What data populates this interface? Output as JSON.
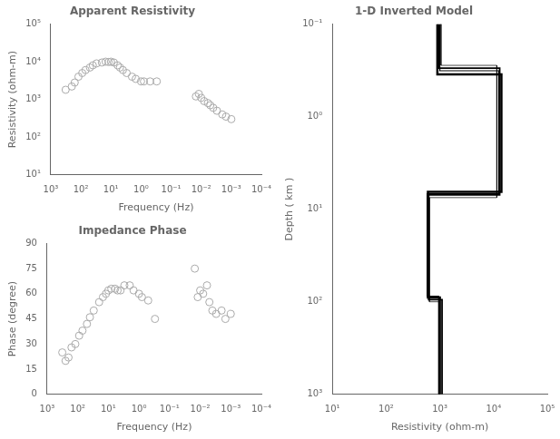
{
  "chart_data": [
    {
      "type": "scatter",
      "title": "Apparent Resistivity",
      "x_label": "Frequency (Hz)",
      "y_label": "Resistivity (ohm-m)",
      "x": [
        320,
        200,
        160,
        120,
        90,
        70,
        50,
        40,
        30,
        20,
        15,
        12,
        10,
        8,
        6,
        5,
        4,
        3,
        2,
        1.5,
        1.0,
        0.8,
        0.5,
        0.3,
        0.015,
        0.012,
        0.01,
        0.008,
        0.006,
        0.005,
        0.004,
        0.003,
        0.002,
        0.0015,
        0.001
      ],
      "values": [
        1800,
        2200,
        2800,
        4000,
        5000,
        6000,
        7000,
        8000,
        9000,
        9500,
        10000,
        9800,
        10000,
        9500,
        8000,
        7000,
        6000,
        5000,
        4000,
        3500,
        3000,
        3000,
        3000,
        3000,
        1200,
        1400,
        1100,
        900,
        800,
        700,
        600,
        500,
        400,
        350,
        300
      ],
      "color": "#aaaaaa",
      "marker": "circle",
      "log": true,
      "grid": false,
      "xlim": [
        1000,
        0.0001
      ],
      "ylim": [
        10,
        100000
      ],
      "xticks": [
        {
          "value": 0.0001,
          "label": "10⁻⁴"
        },
        {
          "value": 0.001,
          "label": "10⁻³"
        },
        {
          "value": 0.01,
          "label": "10⁻²"
        },
        {
          "value": 0.1,
          "label": "10⁻¹"
        },
        {
          "value": 1,
          "label": "10⁰"
        },
        {
          "value": 10,
          "label": "10¹"
        },
        {
          "value": 100,
          "label": "10²"
        },
        {
          "value": 1000,
          "label": "10³"
        }
      ],
      "yticks": [
        {
          "value": 10,
          "label": "10¹"
        },
        {
          "value": 100,
          "label": "10²"
        },
        {
          "value": 1000,
          "label": "10³"
        },
        {
          "value": 10000,
          "label": "10⁴"
        },
        {
          "value": 100000,
          "label": "10⁵"
        }
      ]
    },
    {
      "type": "scatter",
      "title": "Impedance Phase",
      "x_label": "Frequency (Hz)",
      "y_label": "Phase (degree)",
      "x": [
        320,
        250,
        200,
        160,
        120,
        90,
        70,
        50,
        40,
        30,
        20,
        15,
        12,
        10,
        8,
        6,
        5,
        4,
        3,
        2,
        1.5,
        1.0,
        0.8,
        0.5,
        0.3,
        0.015,
        0.012,
        0.01,
        0.008,
        0.006,
        0.005,
        0.004,
        0.003,
        0.002,
        0.0015,
        0.001
      ],
      "values": [
        25,
        20,
        22,
        28,
        30,
        35,
        38,
        42,
        46,
        50,
        55,
        58,
        60,
        62,
        63,
        63,
        62,
        62,
        65,
        65,
        62,
        60,
        58,
        56,
        45,
        75,
        58,
        62,
        60,
        65,
        55,
        50,
        48,
        50,
        45,
        48
      ],
      "color": "#aaaaaa",
      "marker": "circle",
      "log": "x",
      "grid": false,
      "xlim": [
        1000,
        0.0001
      ],
      "ylim": [
        0,
        90
      ],
      "xticks": [
        {
          "value": 0.0001,
          "label": "10⁻⁴"
        },
        {
          "value": 0.001,
          "label": "10⁻³"
        },
        {
          "value": 0.01,
          "label": "10⁻²"
        },
        {
          "value": 0.1,
          "label": "10⁻¹"
        },
        {
          "value": 1,
          "label": "10⁰"
        },
        {
          "value": 10,
          "label": "10¹"
        },
        {
          "value": 100,
          "label": "10²"
        },
        {
          "value": 1000,
          "label": "10³"
        }
      ],
      "yticks": [
        0,
        15,
        30,
        45,
        60,
        75,
        90
      ]
    },
    {
      "type": "line",
      "title": "1-D Inverted Model",
      "x_label": "Resistivity (ohm-m)",
      "y_label": "Depth ( km )",
      "log": true,
      "grid": false,
      "xlim": [
        10,
        100000
      ],
      "ylim": [
        1000,
        0.1
      ],
      "xticks": [
        {
          "value": 10,
          "label": "10¹"
        },
        {
          "value": 100,
          "label": "10²"
        },
        {
          "value": 1000,
          "label": "10³"
        },
        {
          "value": 10000,
          "label": "10⁴"
        },
        {
          "value": 100000,
          "label": "10⁵"
        }
      ],
      "yticks": [
        {
          "value": 0.1,
          "label": "10⁻¹"
        },
        {
          "value": 1,
          "label": "10⁰"
        },
        {
          "value": 10,
          "label": "10¹"
        },
        {
          "value": 100,
          "label": "10²"
        },
        {
          "value": 1000,
          "label": "10³"
        }
      ],
      "series": [
        {
          "color": "#000000",
          "x": [
            900,
            900,
            14000,
            14000,
            14000,
            600,
            600,
            600,
            1000,
            1000,
            1000
          ],
          "values": [
            0.1,
            0.35,
            0.35,
            0.35,
            6.5,
            6.5,
            6.5,
            90,
            90,
            90,
            1000
          ]
        },
        {
          "color": "#000000",
          "x": [
            950,
            950,
            13000,
            13000,
            13000,
            620,
            620,
            620,
            1100,
            1100,
            1100
          ],
          "values": [
            0.1,
            0.3,
            0.3,
            0.3,
            7.0,
            7.0,
            7.0,
            95,
            95,
            95,
            1000
          ]
        },
        {
          "color": "#000000",
          "x": [
            1000,
            1000,
            12500,
            12500,
            12500,
            580,
            580,
            580,
            950,
            950,
            950
          ],
          "values": [
            0.1,
            0.32,
            0.32,
            0.32,
            6.8,
            6.8,
            6.8,
            87,
            87,
            87,
            1000
          ]
        },
        {
          "color": "#000000",
          "x": [
            1050,
            1050,
            11500,
            11500,
            11500,
            640,
            640,
            640,
            980,
            980,
            980
          ],
          "values": [
            0.1,
            0.28,
            0.28,
            0.28,
            7.5,
            7.5,
            7.5,
            100,
            100,
            100,
            1000
          ]
        }
      ]
    }
  ]
}
